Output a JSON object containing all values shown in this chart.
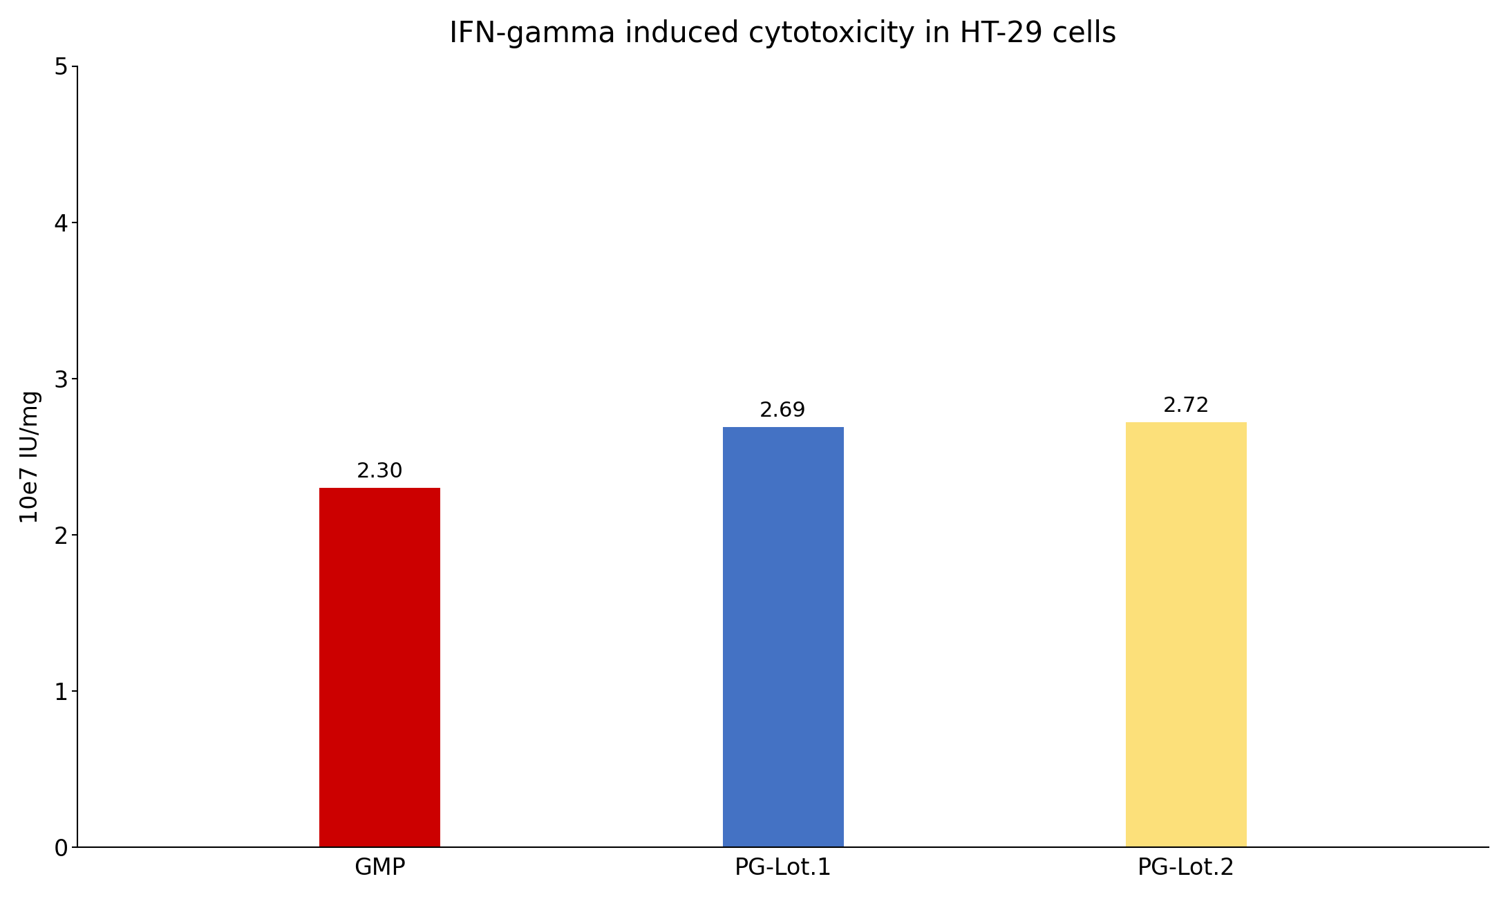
{
  "title": "IFN-gamma induced cytotoxicity in HT-29 cells",
  "categories": [
    "GMP",
    "PG-Lot.1",
    "PG-Lot.2"
  ],
  "values": [
    2.3,
    2.69,
    2.72
  ],
  "bar_colors": [
    "#cc0000",
    "#4472c4",
    "#fce07a"
  ],
  "ylabel": "10e7 IU/mg",
  "ylim": [
    0,
    5
  ],
  "yticks": [
    0,
    1,
    2,
    3,
    4,
    5
  ],
  "bar_labels": [
    "2.30",
    "2.69",
    "2.72"
  ],
  "title_fontsize": 30,
  "label_fontsize": 24,
  "tick_fontsize": 24,
  "annotation_fontsize": 22,
  "bar_width": 0.3,
  "background_color": "#ffffff",
  "xlim_left": -0.75,
  "xlim_right": 2.75
}
